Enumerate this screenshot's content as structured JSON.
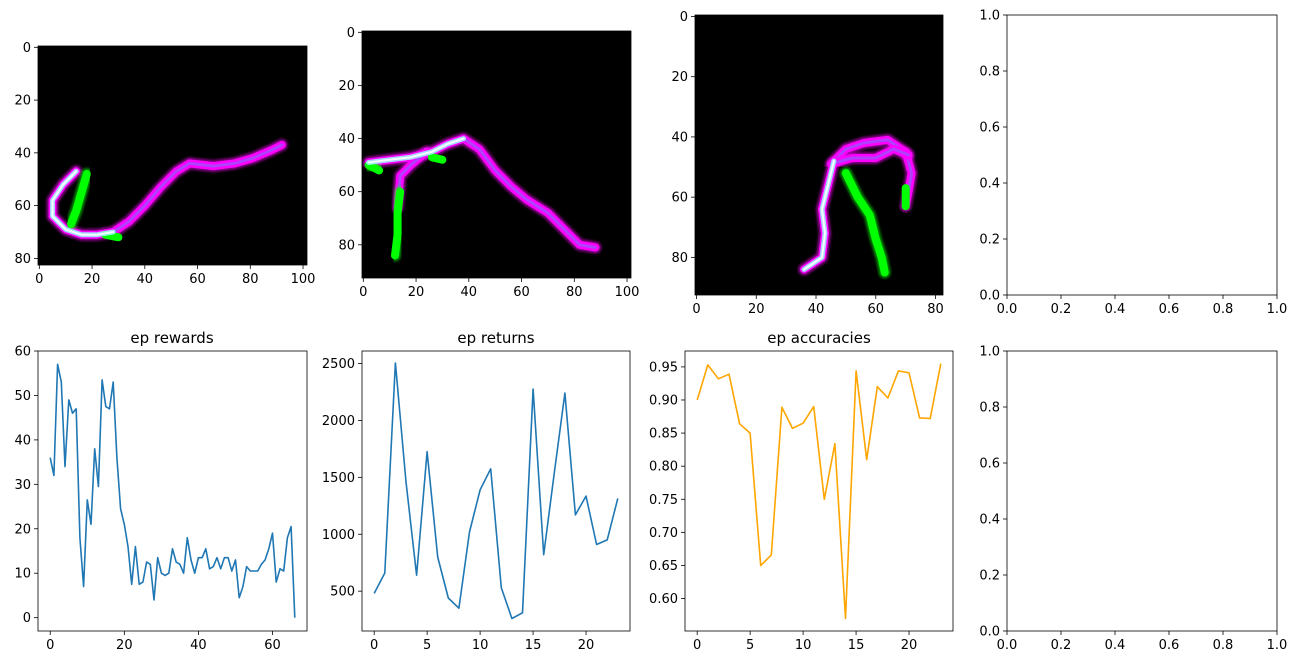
{
  "figure": {
    "background": "#ffffff"
  },
  "panels": {
    "image_1": {
      "xticks": [
        0,
        20,
        40,
        60,
        80,
        100
      ],
      "yticks": [
        0,
        20,
        40,
        60,
        80
      ],
      "xlim": [
        -0.5,
        101.5
      ],
      "ylim": [
        82.5,
        -0.5
      ],
      "strokes": [
        {
          "color": "#ff00ff",
          "points": [
            [
              14,
              47
            ],
            [
              9,
              52
            ],
            [
              5,
              58
            ],
            [
              5,
              64
            ],
            [
              10,
              69
            ],
            [
              16,
              71
            ],
            [
              22,
              71
            ],
            [
              28,
              70
            ],
            [
              34,
              66
            ],
            [
              40,
              60
            ],
            [
              46,
              53
            ],
            [
              52,
              47
            ],
            [
              57,
              44
            ],
            [
              66,
              45
            ],
            [
              74,
              44
            ],
            [
              81,
              42
            ],
            [
              88,
              39
            ],
            [
              92,
              37
            ]
          ]
        },
        {
          "color": "#00ff00",
          "points": [
            [
              18,
              48
            ],
            [
              16,
              55
            ],
            [
              14,
              62
            ],
            [
              12,
              67
            ]
          ]
        },
        {
          "color": "#00ff00",
          "points": [
            [
              25,
              71
            ],
            [
              30,
              72
            ]
          ]
        }
      ]
    },
    "image_2": {
      "xticks": [
        0,
        20,
        40,
        60,
        80,
        100
      ],
      "yticks": [
        0,
        20,
        40,
        60,
        80
      ],
      "xlim": [
        -0.5,
        101.5
      ],
      "ylim": [
        92.5,
        -0.5
      ],
      "strokes": [
        {
          "color": "#ff00ff",
          "points": [
            [
              2,
              49
            ],
            [
              10,
              48
            ],
            [
              18,
              47
            ],
            [
              26,
              45
            ],
            [
              32,
              42
            ],
            [
              38,
              40
            ],
            [
              44,
              44
            ],
            [
              50,
              52
            ],
            [
              56,
              58
            ],
            [
              62,
              63
            ],
            [
              70,
              68
            ],
            [
              76,
              74
            ],
            [
              82,
              80
            ],
            [
              88,
              81
            ]
          ]
        },
        {
          "color": "#ff00ff",
          "points": [
            [
              13,
              66
            ],
            [
              14,
              54
            ],
            [
              18,
              50
            ],
            [
              24,
              45
            ]
          ]
        },
        {
          "color": "#00ff00",
          "points": [
            [
              14,
              60
            ],
            [
              13,
              68
            ],
            [
              13,
              76
            ],
            [
              12,
              84
            ]
          ]
        },
        {
          "color": "#00ff00",
          "points": [
            [
              2,
              50
            ],
            [
              6,
              52
            ]
          ]
        },
        {
          "color": "#00ff00",
          "points": [
            [
              26,
              47
            ],
            [
              30,
              48
            ]
          ]
        }
      ]
    },
    "image_3": {
      "xticks": [
        0,
        20,
        40,
        60,
        80
      ],
      "yticks": [
        0,
        20,
        40,
        60,
        80
      ],
      "xlim": [
        -0.5,
        82.5
      ],
      "ylim": [
        92.5,
        -0.5
      ],
      "strokes": [
        {
          "color": "#ff00ff",
          "points": [
            [
              36,
              84
            ],
            [
              42,
              80
            ],
            [
              43,
              72
            ],
            [
              42,
              64
            ],
            [
              44,
              56
            ],
            [
              46,
              48
            ],
            [
              50,
              44
            ],
            [
              56,
              42
            ],
            [
              64,
              41
            ],
            [
              70,
              45
            ],
            [
              72,
              52
            ],
            [
              71,
              58
            ],
            [
              70,
              63
            ]
          ]
        },
        {
          "color": "#ff00ff",
          "points": [
            [
              45,
              49
            ],
            [
              52,
              47
            ],
            [
              60,
              47
            ],
            [
              66,
              44
            ],
            [
              71,
              46
            ]
          ]
        },
        {
          "color": "#00ff00",
          "points": [
            [
              50,
              52
            ],
            [
              54,
              60
            ],
            [
              58,
              66
            ],
            [
              60,
              74
            ],
            [
              62,
              80
            ],
            [
              63,
              85
            ]
          ]
        },
        {
          "color": "#00ff00",
          "points": [
            [
              70,
              57
            ],
            [
              70,
              63
            ]
          ]
        }
      ]
    },
    "empty_top": {
      "xticks": [
        "0.0",
        "0.2",
        "0.4",
        "0.6",
        "0.8",
        "1.0"
      ],
      "yticks": [
        "0.0",
        "0.2",
        "0.4",
        "0.6",
        "0.8",
        "1.0"
      ]
    },
    "empty_bottom": {
      "xticks": [
        "0.0",
        "0.2",
        "0.4",
        "0.6",
        "0.8",
        "1.0"
      ],
      "yticks": [
        "0.0",
        "0.2",
        "0.4",
        "0.6",
        "0.8",
        "1.0"
      ]
    }
  },
  "chart_data": [
    {
      "type": "line",
      "title": "ep rewards",
      "color": "#1f77b4",
      "xlim": [
        -3.3,
        69.3
      ],
      "ylim": [
        -3.0,
        60.0
      ],
      "xticks": [
        0,
        20,
        40,
        60
      ],
      "yticks": [
        0,
        10,
        20,
        30,
        40,
        50,
        60
      ],
      "x": [
        0,
        1,
        2,
        3,
        4,
        5,
        6,
        7,
        8,
        9,
        10,
        11,
        12,
        13,
        14,
        15,
        16,
        17,
        18,
        19,
        20,
        21,
        22,
        23,
        24,
        25,
        26,
        27,
        28,
        29,
        30,
        31,
        32,
        33,
        34,
        35,
        36,
        37,
        38,
        39,
        40,
        41,
        42,
        43,
        44,
        45,
        46,
        47,
        48,
        49,
        50,
        51,
        52,
        53,
        54,
        55,
        56,
        57,
        58,
        59,
        60,
        61,
        62,
        63,
        64,
        65,
        66
      ],
      "y": [
        36,
        32,
        57,
        53,
        34,
        49,
        46,
        47,
        18,
        7,
        26.5,
        21,
        38,
        29.5,
        53.5,
        47.5,
        47,
        53,
        36,
        24.5,
        21,
        16,
        7.5,
        16,
        7.5,
        8,
        12.5,
        12,
        4,
        13.5,
        10,
        9.5,
        10,
        15.5,
        12.5,
        12,
        10,
        18,
        13,
        10,
        13.5,
        13.5,
        15.5,
        11,
        11.5,
        13.5,
        11,
        13.5,
        13.5,
        10.5,
        13,
        4.5,
        7,
        11.5,
        10.5,
        10.5,
        10.5,
        12,
        13,
        15.5,
        19,
        8,
        11,
        10.5,
        18,
        20.5,
        0
      ]
    },
    {
      "type": "line",
      "title": "ep returns",
      "color": "#1f77b4",
      "xlim": [
        -1.15,
        24.15
      ],
      "ylim": [
        150,
        2610
      ],
      "xticks": [
        0,
        5,
        10,
        15,
        20
      ],
      "yticks": [
        500,
        1000,
        1500,
        2000,
        2500
      ],
      "x": [
        0,
        1,
        2,
        3,
        4,
        5,
        6,
        7,
        8,
        9,
        10,
        11,
        12,
        13,
        14,
        15,
        16,
        17,
        18,
        19,
        20,
        21,
        22,
        23
      ],
      "y": [
        480,
        660,
        2505,
        1460,
        640,
        1725,
        800,
        440,
        350,
        1020,
        1390,
        1575,
        530,
        260,
        310,
        2275,
        820,
        1540,
        2240,
        1170,
        1335,
        910,
        950,
        1315
      ]
    },
    {
      "type": "line",
      "title": "ep accuracies",
      "color": "#ffa500",
      "xlim": [
        -1.15,
        24.15
      ],
      "ylim": [
        0.551,
        0.974
      ],
      "xticks": [
        0,
        5,
        10,
        15,
        20
      ],
      "yticks": [
        "0.60",
        "0.65",
        "0.70",
        "0.75",
        "0.80",
        "0.85",
        "0.90",
        "0.95"
      ],
      "x": [
        0,
        1,
        2,
        3,
        4,
        5,
        6,
        7,
        8,
        9,
        10,
        11,
        12,
        13,
        14,
        15,
        16,
        17,
        18,
        19,
        20,
        21,
        22,
        23
      ],
      "y": [
        0.9,
        0.953,
        0.932,
        0.939,
        0.864,
        0.85,
        0.65,
        0.666,
        0.889,
        0.857,
        0.865,
        0.89,
        0.75,
        0.834,
        0.57,
        0.944,
        0.81,
        0.92,
        0.903,
        0.944,
        0.941,
        0.873,
        0.872,
        0.955
      ]
    }
  ]
}
